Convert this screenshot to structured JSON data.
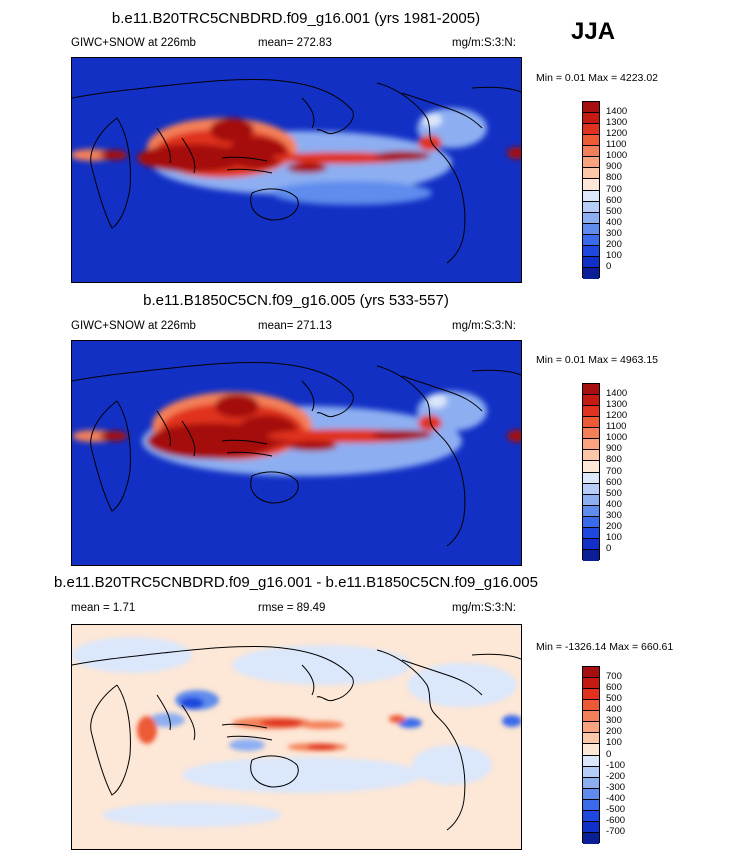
{
  "season": "JJA",
  "panels": [
    {
      "title": "b.e11.B20TRC5CNBDRD.f09_g16.001 (yrs 1981-2005)",
      "left_label": "GIWC+SNOW at 226mb",
      "stat": "mean= 272.83",
      "units": "mg/m:S:3:N:",
      "minmax": "Min =   0.01 Max = 4223.02",
      "colorbar": {
        "labels": [
          "1400",
          "1300",
          "1200",
          "1100",
          "1000",
          "900",
          "800",
          "700",
          "600",
          "500",
          "400",
          "300",
          "200",
          "100",
          "0"
        ],
        "colors": [
          "#a50f0f",
          "#c41a12",
          "#e0321f",
          "#ed5a36",
          "#f48059",
          "#f9a47f",
          "#fcc7a9",
          "#fde7d6",
          "#dbe7fb",
          "#b6cef7",
          "#8daff2",
          "#5f8ced",
          "#3a6bea",
          "#1f48de",
          "#1030c8",
          "#0a1f96"
        ]
      }
    },
    {
      "title": "b.e11.B1850C5CN.f09_g16.005 (yrs 533-557)",
      "left_label": "GIWC+SNOW at 226mb",
      "stat": "mean= 271.13",
      "units": "mg/m:S:3:N:",
      "minmax": "Min =   0.01 Max = 4963.15",
      "colorbar": {
        "labels": [
          "1400",
          "1300",
          "1200",
          "1100",
          "1000",
          "900",
          "800",
          "700",
          "600",
          "500",
          "400",
          "300",
          "200",
          "100",
          "0"
        ],
        "colors": [
          "#a50f0f",
          "#c41a12",
          "#e0321f",
          "#ed5a36",
          "#f48059",
          "#f9a47f",
          "#fcc7a9",
          "#fde7d6",
          "#dbe7fb",
          "#b6cef7",
          "#8daff2",
          "#5f8ced",
          "#3a6bea",
          "#1f48de",
          "#1030c8",
          "#0a1f96"
        ]
      }
    },
    {
      "title": "b.e11.B20TRC5CNBDRD.f09_g16.001 - b.e11.B1850C5CN.f09_g16.005",
      "left_label": "mean =   1.71",
      "stat": "rmse =  89.49",
      "units": "mg/m:S:3:N:",
      "minmax": "Min = -1326.14 Max = 660.61",
      "colorbar": {
        "labels": [
          "700",
          "600",
          "500",
          "400",
          "300",
          "200",
          "100",
          "0",
          "-100",
          "-200",
          "-300",
          "-400",
          "-500",
          "-600",
          "-700"
        ],
        "colors": [
          "#a50f0f",
          "#c41a12",
          "#e0321f",
          "#ed5a36",
          "#f48059",
          "#f9a47f",
          "#fcc7a9",
          "#fde7d6",
          "#dbe7fb",
          "#b6cef7",
          "#8daff2",
          "#5f8ced",
          "#3a6bea",
          "#1f48de",
          "#1030c8",
          "#0a1f96"
        ]
      }
    }
  ],
  "colors": {
    "ocean_background": "#1230c4",
    "diff_background": "#fde7d6",
    "coastline": "#000000"
  }
}
